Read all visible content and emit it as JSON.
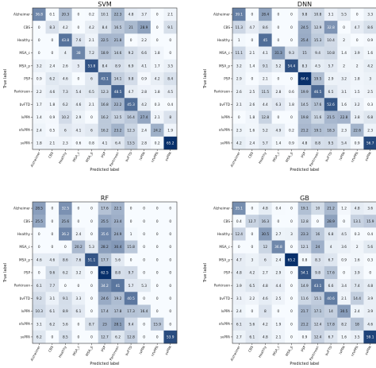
{
  "chart_data": [
    {
      "type": "heatmap",
      "title": "SVM",
      "xlabel": "Predicted label",
      "ylabel": "True label",
      "categories": [
        "Alzheimer",
        "CBS",
        "Healthy",
        "MSA_c",
        "MSA_p",
        "PSP",
        "Parkinson",
        "bvFTD",
        "lvPPA",
        "nfvPPA",
        "svPPA"
      ],
      "matrix": [
        [
          36.8,
          0.1,
          20.3,
          0.0,
          0.2,
          10.1,
          22.3,
          4.8,
          3.7,
          0.0,
          2.1
        ],
        [
          0.0,
          8.3,
          4.2,
          0.0,
          4.2,
          8.4,
          16.5,
          21.0,
          28.9,
          0.0,
          9.1
        ],
        [
          0.0,
          0.0,
          43.8,
          7.6,
          2.1,
          22.5,
          21.8,
          0.0,
          2.2,
          0.0,
          0.0
        ],
        [
          0.0,
          0.0,
          4.0,
          38.0,
          7.2,
          18.9,
          14.6,
          9.2,
          6.6,
          1.8,
          0.0
        ],
        [
          3.2,
          2.4,
          2.6,
          5.0,
          53.8,
          8.4,
          8.9,
          6.9,
          4.1,
          1.7,
          3.5
        ],
        [
          0.9,
          6.2,
          4.6,
          0.0,
          6.0,
          43.1,
          14.1,
          9.8,
          0.9,
          4.2,
          8.4
        ],
        [
          2.2,
          4.6,
          7.3,
          5.4,
          6.5,
          12.3,
          48.5,
          4.7,
          2.8,
          1.8,
          4.5
        ],
        [
          1.7,
          1.8,
          6.2,
          4.6,
          2.1,
          16.8,
          22.2,
          45.3,
          4.2,
          0.3,
          0.4
        ],
        [
          1.4,
          0.9,
          10.2,
          2.9,
          0.0,
          16.2,
          12.5,
          16.4,
          27.4,
          2.1,
          8.0
        ],
        [
          2.4,
          0.5,
          6.0,
          4.1,
          6.0,
          16.2,
          23.2,
          12.3,
          2.4,
          24.2,
          1.9
        ],
        [
          1.8,
          2.1,
          2.3,
          0.6,
          0.8,
          4.1,
          6.4,
          13.5,
          2.8,
          0.2,
          65.2
        ]
      ]
    },
    {
      "type": "heatmap",
      "title": "DNN",
      "xlabel": "Predicted label",
      "ylabel": "True label",
      "categories": [
        "Alzheimer",
        "CBS",
        "Healthy",
        "MSA_c",
        "MSA_p",
        "PSP",
        "Parkinson",
        "bvFTD",
        "lvPPA",
        "nfvPPA",
        "svPPA"
      ],
      "matrix": [
        [
          39.1,
          0.0,
          28.4,
          0.0,
          0.0,
          9.8,
          10.8,
          3.1,
          5.5,
          0.0,
          3.3
        ],
        [
          11.3,
          4.7,
          8.6,
          0.0,
          0.0,
          24.5,
          12.9,
          32.8,
          0.0,
          4.7,
          8.6
        ],
        [
          1.0,
          0.0,
          45.0,
          0.0,
          0.0,
          25.4,
          15.3,
          10.4,
          2.0,
          0.0,
          0.9
        ],
        [
          11.1,
          2.1,
          4.1,
          31.3,
          9.3,
          15.0,
          9.4,
          10.8,
          1.4,
          3.9,
          1.6
        ],
        [
          3.2,
          1.4,
          9.1,
          5.2,
          54.4,
          8.3,
          4.5,
          5.7,
          2.0,
          2.0,
          4.2
        ],
        [
          2.9,
          0.0,
          2.1,
          0.0,
          0.0,
          64.6,
          19.5,
          2.9,
          3.2,
          1.8,
          3.0
        ],
        [
          2.6,
          2.5,
          11.5,
          2.8,
          0.6,
          19.9,
          46.5,
          6.5,
          3.1,
          1.5,
          2.5
        ],
        [
          2.1,
          2.6,
          4.4,
          6.3,
          1.8,
          14.5,
          17.6,
          52.6,
          1.6,
          3.2,
          0.3
        ],
        [
          0.0,
          1.8,
          12.8,
          0.0,
          0.0,
          19.8,
          11.6,
          21.5,
          22.8,
          3.8,
          6.8
        ],
        [
          2.3,
          1.6,
          5.2,
          4.9,
          0.2,
          21.2,
          19.1,
          18.3,
          2.3,
          22.6,
          2.3
        ],
        [
          4.2,
          2.4,
          5.7,
          1.4,
          0.9,
          4.8,
          8.8,
          9.5,
          5.4,
          0.9,
          56.7
        ]
      ]
    },
    {
      "type": "heatmap",
      "title": "RF",
      "xlabel": "Predicted label",
      "ylabel": "True label",
      "categories": [
        "Alzheimer",
        "CBS",
        "Healthy",
        "MSA_c",
        "MSA_p",
        "PSP",
        "Parkinson",
        "bvFTD",
        "lvPPA",
        "nfvPPA",
        "svPPA"
      ],
      "matrix": [
        [
          28.5,
          0.0,
          32.5,
          0.0,
          0.0,
          17.6,
          22.1,
          0.0,
          0.0,
          0.0,
          0.0
        ],
        [
          25.5,
          0.0,
          25.6,
          0.0,
          0.0,
          25.5,
          23.4,
          0.0,
          0.0,
          0.0,
          0.0
        ],
        [
          0.0,
          0.0,
          36.2,
          2.4,
          0.0,
          35.6,
          24.9,
          1.0,
          0.0,
          0.0,
          0.0
        ],
        [
          0.0,
          0.0,
          0.0,
          20.2,
          5.3,
          28.2,
          30.4,
          15.8,
          0.0,
          0.0,
          0.0
        ],
        [
          4.6,
          4.6,
          8.6,
          7.6,
          51.1,
          17.7,
          5.6,
          0.0,
          0.0,
          0.0,
          0.0
        ],
        [
          0.0,
          9.6,
          6.2,
          3.2,
          0.0,
          62.5,
          8.8,
          9.7,
          0.0,
          0.0,
          0.0
        ],
        [
          6.1,
          7.7,
          0.0,
          0.0,
          0.0,
          34.2,
          41.0,
          5.7,
          5.3,
          0.0,
          0.0
        ],
        [
          9.2,
          3.1,
          9.1,
          3.3,
          0.0,
          24.6,
          19.2,
          40.5,
          0.0,
          0.0,
          0.0
        ],
        [
          10.3,
          6.1,
          8.9,
          6.1,
          0.0,
          17.4,
          17.8,
          17.3,
          16.4,
          0.0,
          0.0
        ],
        [
          3.1,
          6.2,
          5.6,
          0.0,
          8.7,
          23.0,
          28.1,
          9.4,
          0.0,
          15.9,
          0.0
        ],
        [
          6.2,
          0.0,
          8.5,
          0.0,
          0.0,
          12.7,
          6.2,
          12.8,
          0.0,
          0.0,
          53.9
        ]
      ]
    },
    {
      "type": "heatmap",
      "title": "GB",
      "xlabel": "Predicted label",
      "ylabel": "True label",
      "categories": [
        "Alzheimer",
        "CBS",
        "Healthy",
        "MSA_c",
        "MSA_p",
        "PSP",
        "Parkinson",
        "bvFTD",
        "lvPPA",
        "nfvPPA",
        "svPPA"
      ],
      "matrix": [
        [
          35.1,
          0.0,
          4.8,
          0.4,
          0.0,
          19.1,
          10.0,
          21.2,
          1.2,
          4.8,
          3.6
        ],
        [
          0.4,
          12.7,
          16.3,
          0.0,
          0.0,
          12.8,
          0.0,
          28.9,
          0.0,
          13.1,
          15.9
        ],
        [
          12.4,
          0.0,
          30.5,
          2.7,
          3.0,
          23.3,
          16.0,
          6.8,
          4.5,
          0.3,
          0.4
        ],
        [
          0.0,
          0.0,
          12.0,
          36.8,
          0.0,
          12.1,
          24.0,
          4.0,
          3.6,
          2.0,
          5.6
        ],
        [
          4.7,
          3.0,
          6.0,
          2.4,
          65.2,
          0.8,
          8.3,
          6.7,
          0.9,
          1.6,
          0.3
        ],
        [
          4.8,
          4.2,
          2.7,
          2.9,
          0.0,
          54.1,
          9.8,
          17.6,
          0.0,
          3.9,
          0.0
        ],
        [
          3.9,
          6.5,
          4.8,
          4.4,
          0.0,
          14.9,
          43.1,
          6.6,
          3.4,
          7.4,
          4.8
        ],
        [
          3.1,
          2.2,
          4.6,
          2.5,
          0.0,
          11.6,
          15.1,
          40.6,
          2.1,
          14.4,
          3.9
        ],
        [
          2.4,
          0.0,
          8.0,
          0.0,
          0.0,
          21.7,
          17.1,
          14.0,
          30.5,
          2.4,
          3.9
        ],
        [
          6.1,
          5.6,
          4.2,
          1.9,
          0.0,
          21.2,
          12.4,
          17.8,
          8.2,
          18.0,
          4.6
        ],
        [
          2.7,
          6.1,
          4.8,
          2.1,
          0.0,
          0.9,
          12.4,
          6.7,
          1.6,
          3.5,
          59.1
        ]
      ]
    }
  ]
}
